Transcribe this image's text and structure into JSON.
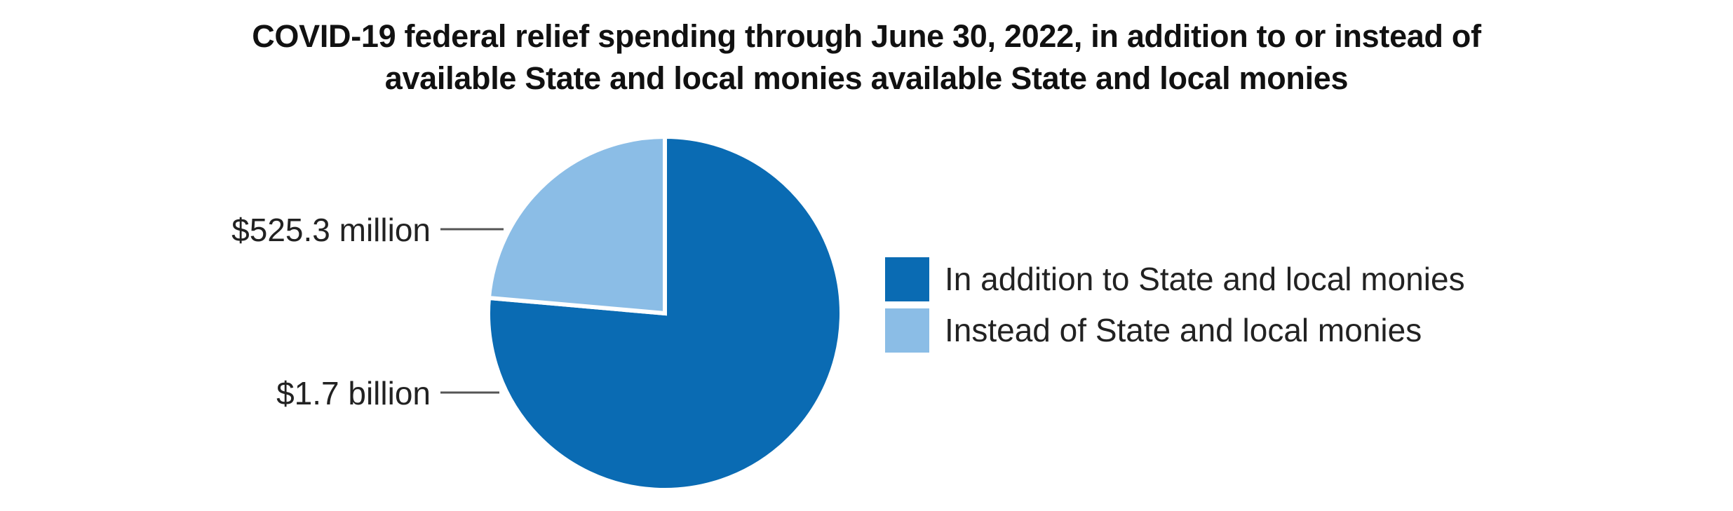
{
  "title_lines": [
    "COVID-19 federal relief spending through June 30, 2022, in addition to or instead of",
    "available State and local monies available State and local monies"
  ],
  "colors": {
    "in_addition": "#0a6bb3",
    "instead": "#8bbde6",
    "leader": "#555555",
    "slice_border": "#ffffff"
  },
  "chart_data": {
    "type": "pie",
    "title": "COVID-19 federal relief spending through June 30, 2022, in addition to or instead of available State and local monies available State and local monies",
    "slices": [
      {
        "name": "In addition to State and local monies",
        "value": 1700.0,
        "label": "$1.7 billion"
      },
      {
        "name": "Instead of State and local monies",
        "value": 525.3,
        "label": "$525.3 million"
      }
    ],
    "legend_position": "right",
    "start": "12 o'clock",
    "direction": "clockwise"
  }
}
